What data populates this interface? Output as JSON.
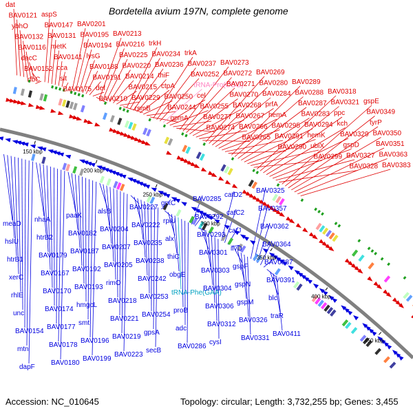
{
  "title": "Bordetella avium 197N, complete genome",
  "footer": {
    "accession": "Accession: NC_010645",
    "summary": "Topology: circular; Length: 3,732,255 bp; Genes: 3,455"
  },
  "colors": {
    "forward": "#e00000",
    "reverse": "#0000e0",
    "rna": "#ff80c0",
    "trna_rev": "#00a0c0",
    "backbone": "#808080"
  },
  "ticks": [
    "150 kbp",
    "200 kbp",
    "250 kbp",
    "300 kbp",
    "350 kbp",
    "400 kbp",
    "450 kbp"
  ],
  "forward_labels": [
    "dat",
    "BAV0121",
    "ybhO",
    "BAV0132",
    "BAV0116",
    "dacC",
    "BAV0152",
    "rfbC",
    "aspS",
    "BAV0147",
    "BAV0131",
    "metK",
    "BAV0141",
    "cca",
    "slt",
    "BAV0175",
    "BAV0201",
    "BAV0195",
    "BAV0194",
    "lysG",
    "BAV0188",
    "BAV0191",
    "def",
    "BAV0210",
    "BAV0213",
    "BAV0216",
    "BAV0225",
    "BAV0220",
    "BAV0214",
    "BAV0215",
    "BAV0229",
    "rsmB",
    "trkH",
    "BAV0234",
    "BAV0236",
    "thiF",
    "ctpA",
    "BAV0250",
    "BAV0244",
    "gpmA",
    "trkA",
    "BAV0237",
    "BAV0252",
    "tRNA-Pro(CGG)",
    "cel",
    "BAV0255",
    "BAV0277",
    "BAV0274",
    "BAV0273",
    "BAV0272",
    "BAV0271",
    "BAV0270",
    "BAV0268",
    "BAV0267",
    "BAV0266",
    "BAV0265",
    "BAV0269",
    "BAV0280",
    "BAV0284",
    "prfA",
    "hemA",
    "BAV0295",
    "BAV0291",
    "BAV0290",
    "BAV0289",
    "BAV0288",
    "BAV0287",
    "BAV0283",
    "BAV0294",
    "hemK",
    "ubiX",
    "BAV0299",
    "BAV0318",
    "BAV0321",
    "ppc",
    "kch",
    "BAV0329",
    "gspD",
    "BAV0327",
    "BAV0328",
    "gspE",
    "BAV0349",
    "tyrP",
    "BAV0350",
    "BAV0351",
    "BAV0363",
    "BAV0383"
  ],
  "reverse_labels": [
    "meaD",
    "hslU",
    "htrB1",
    "xerC",
    "rhlE",
    "unc",
    "BAV0154",
    "mtn",
    "dapF",
    "nhaA",
    "htrB2",
    "BAV0179",
    "BAV0167",
    "BAV0170",
    "BAV0174",
    "BAV0177",
    "BAV0178",
    "BAV0180",
    "paaK",
    "BAV0182",
    "BAV0187",
    "BAV0192",
    "BAV0193",
    "hmgcL",
    "smt",
    "BAV0196",
    "BAV0199",
    "alsB",
    "BAV0204",
    "BAV0207",
    "BAV0205",
    "rimO",
    "BAV0218",
    "BAV0221",
    "BAV0219",
    "BAV0223",
    "BAV0227",
    "BAV0222",
    "BAV0235",
    "BAV0238",
    "BAV0242",
    "BAV0253",
    "BAV0254",
    "gpsA",
    "secB",
    "grxC",
    "rplU",
    "alx",
    "thiC",
    "obgE",
    "tRNA-Phe(GAA)",
    "proB",
    "adc",
    "BAV0286",
    "BAV0285",
    "BAV0292",
    "BAV0293",
    "BAV0301",
    "BAV0303",
    "BAV0304",
    "BAV0306",
    "BAV0312",
    "cysI",
    "catD2",
    "catC2",
    "catJ",
    "ilvD",
    "gspF",
    "gspN",
    "gspM",
    "BAV0326",
    "BAV0331",
    "BAV0325",
    "BAV0357",
    "BAV0362",
    "BAV0364",
    "BAV0387",
    "BAV0391",
    "blc",
    "traR",
    "BAV0411"
  ]
}
